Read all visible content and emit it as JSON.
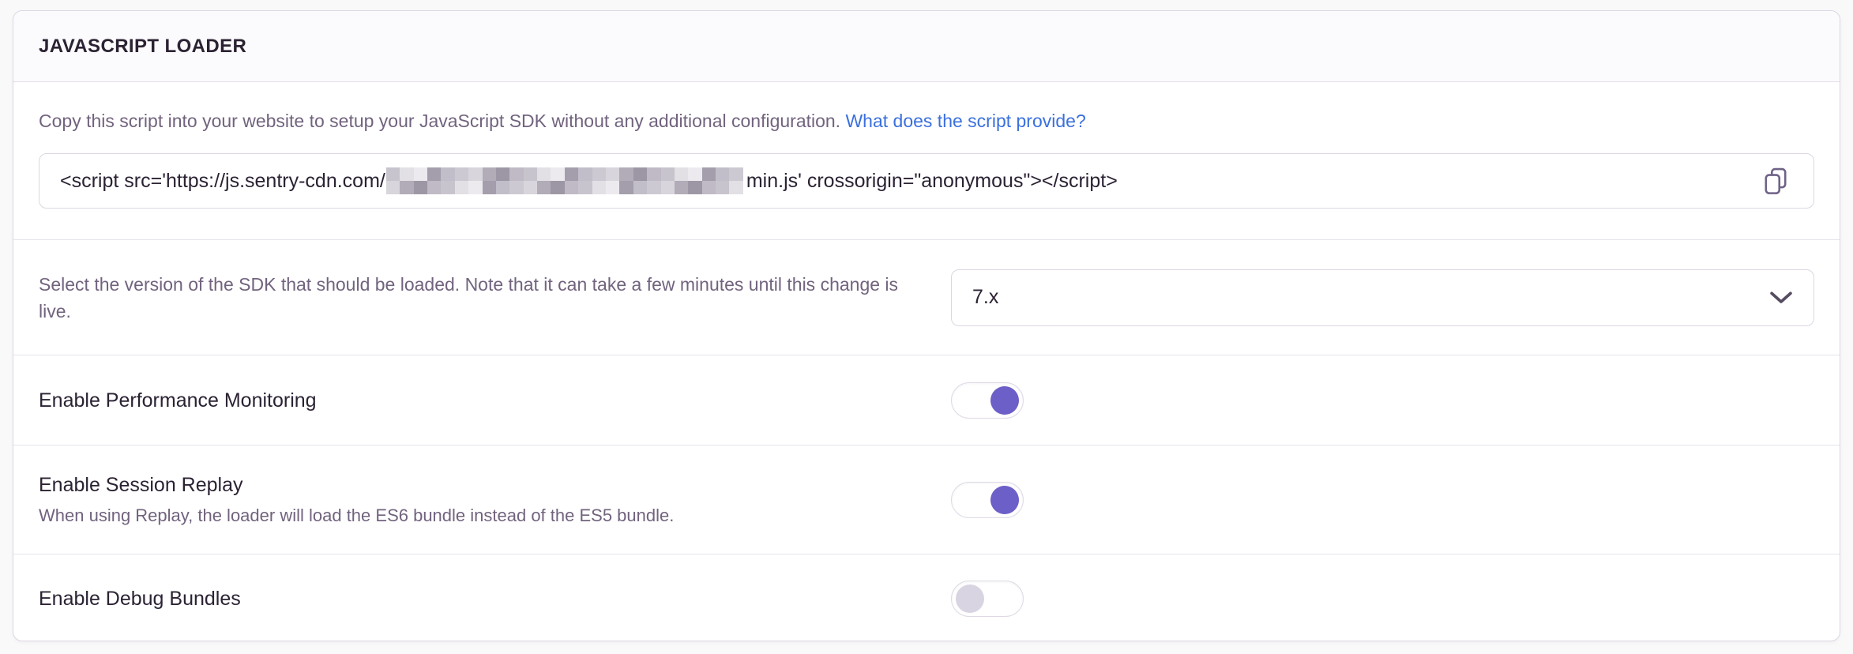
{
  "panel": {
    "title": "JAVASCRIPT LOADER"
  },
  "script_section": {
    "description": "Copy this script into your website to setup your JavaScript SDK without any additional configuration. ",
    "link_label": "What does the script provide?",
    "code_prefix": "<script src='https://js.sentry-cdn.com/",
    "code_redacted_note": "redacted-key",
    "code_suffix": "min.js' crossorigin=\"anonymous\"></script>"
  },
  "version_field": {
    "description": "Select the version of the SDK that should be loaded. Note that it can take a few minutes until this change is live.",
    "selected_value": "7.x"
  },
  "toggles": [
    {
      "label": "Enable Performance Monitoring",
      "sublabel": "",
      "enabled": true
    },
    {
      "label": "Enable Session Replay",
      "sublabel": "When using Replay, the loader will load the ES6 bundle instead of the ES5 bundle.",
      "enabled": true
    },
    {
      "label": "Enable Debug Bundles",
      "sublabel": "",
      "enabled": false
    }
  ],
  "icons": {
    "copy": "copy-icon",
    "chevron": "chevron-down-icon"
  },
  "colors": {
    "accent_purple": "#6C5FC7",
    "link_blue": "#3B70DE",
    "panel_border": "#DCD6E2",
    "separator": "#E7E2EC",
    "heading_text": "#2B2233",
    "muted_text": "#71637E",
    "page_background": "#F9F9FA",
    "toggle_off_knob": "#D9D4E1"
  }
}
